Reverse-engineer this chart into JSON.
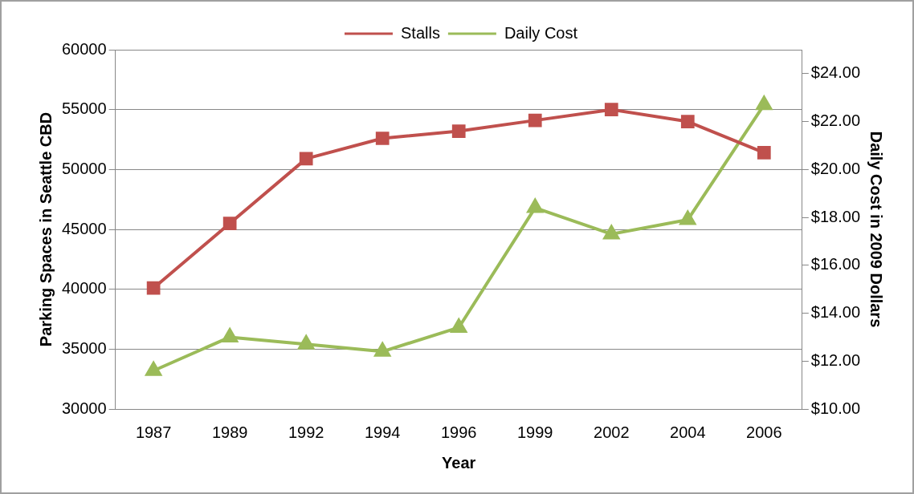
{
  "chart_data": {
    "type": "line",
    "categories": [
      "1987",
      "1989",
      "1992",
      "1994",
      "1996",
      "1999",
      "2002",
      "2004",
      "2006"
    ],
    "series": [
      {
        "name": "Stalls",
        "color": "#c0504d",
        "marker": "square",
        "values": [
          40100,
          45500,
          50900,
          52600,
          53200,
          54100,
          55000,
          54000,
          51400
        ]
      },
      {
        "name": "Daily Cost",
        "color": "#9bbb59",
        "marker": "triangle",
        "axis": "y2",
        "values": [
          11.6,
          13.0,
          12.7,
          12.4,
          13.4,
          18.4,
          17.3,
          17.9,
          22.7
        ]
      }
    ],
    "xlabel": "Year",
    "ylabel": "Parking Spaces in Seattle CBD",
    "y2label": "Daily Cost in 2009 Dollars",
    "ylim": [
      30000,
      60000
    ],
    "yticks": [
      30000,
      35000,
      40000,
      45000,
      50000,
      55000,
      60000
    ],
    "y2lim": [
      10,
      25
    ],
    "y2ticks": [
      {
        "value": 10,
        "label": "$10.00"
      },
      {
        "value": 12,
        "label": "$12.00"
      },
      {
        "value": 14,
        "label": "$14.00"
      },
      {
        "value": 16,
        "label": "$16.00"
      },
      {
        "value": 18,
        "label": "$18.00"
      },
      {
        "value": 20,
        "label": "$20.00"
      },
      {
        "value": 22,
        "label": "$22.00"
      },
      {
        "value": 24,
        "label": "$24.00"
      }
    ],
    "grid": "y",
    "legend": "top"
  }
}
